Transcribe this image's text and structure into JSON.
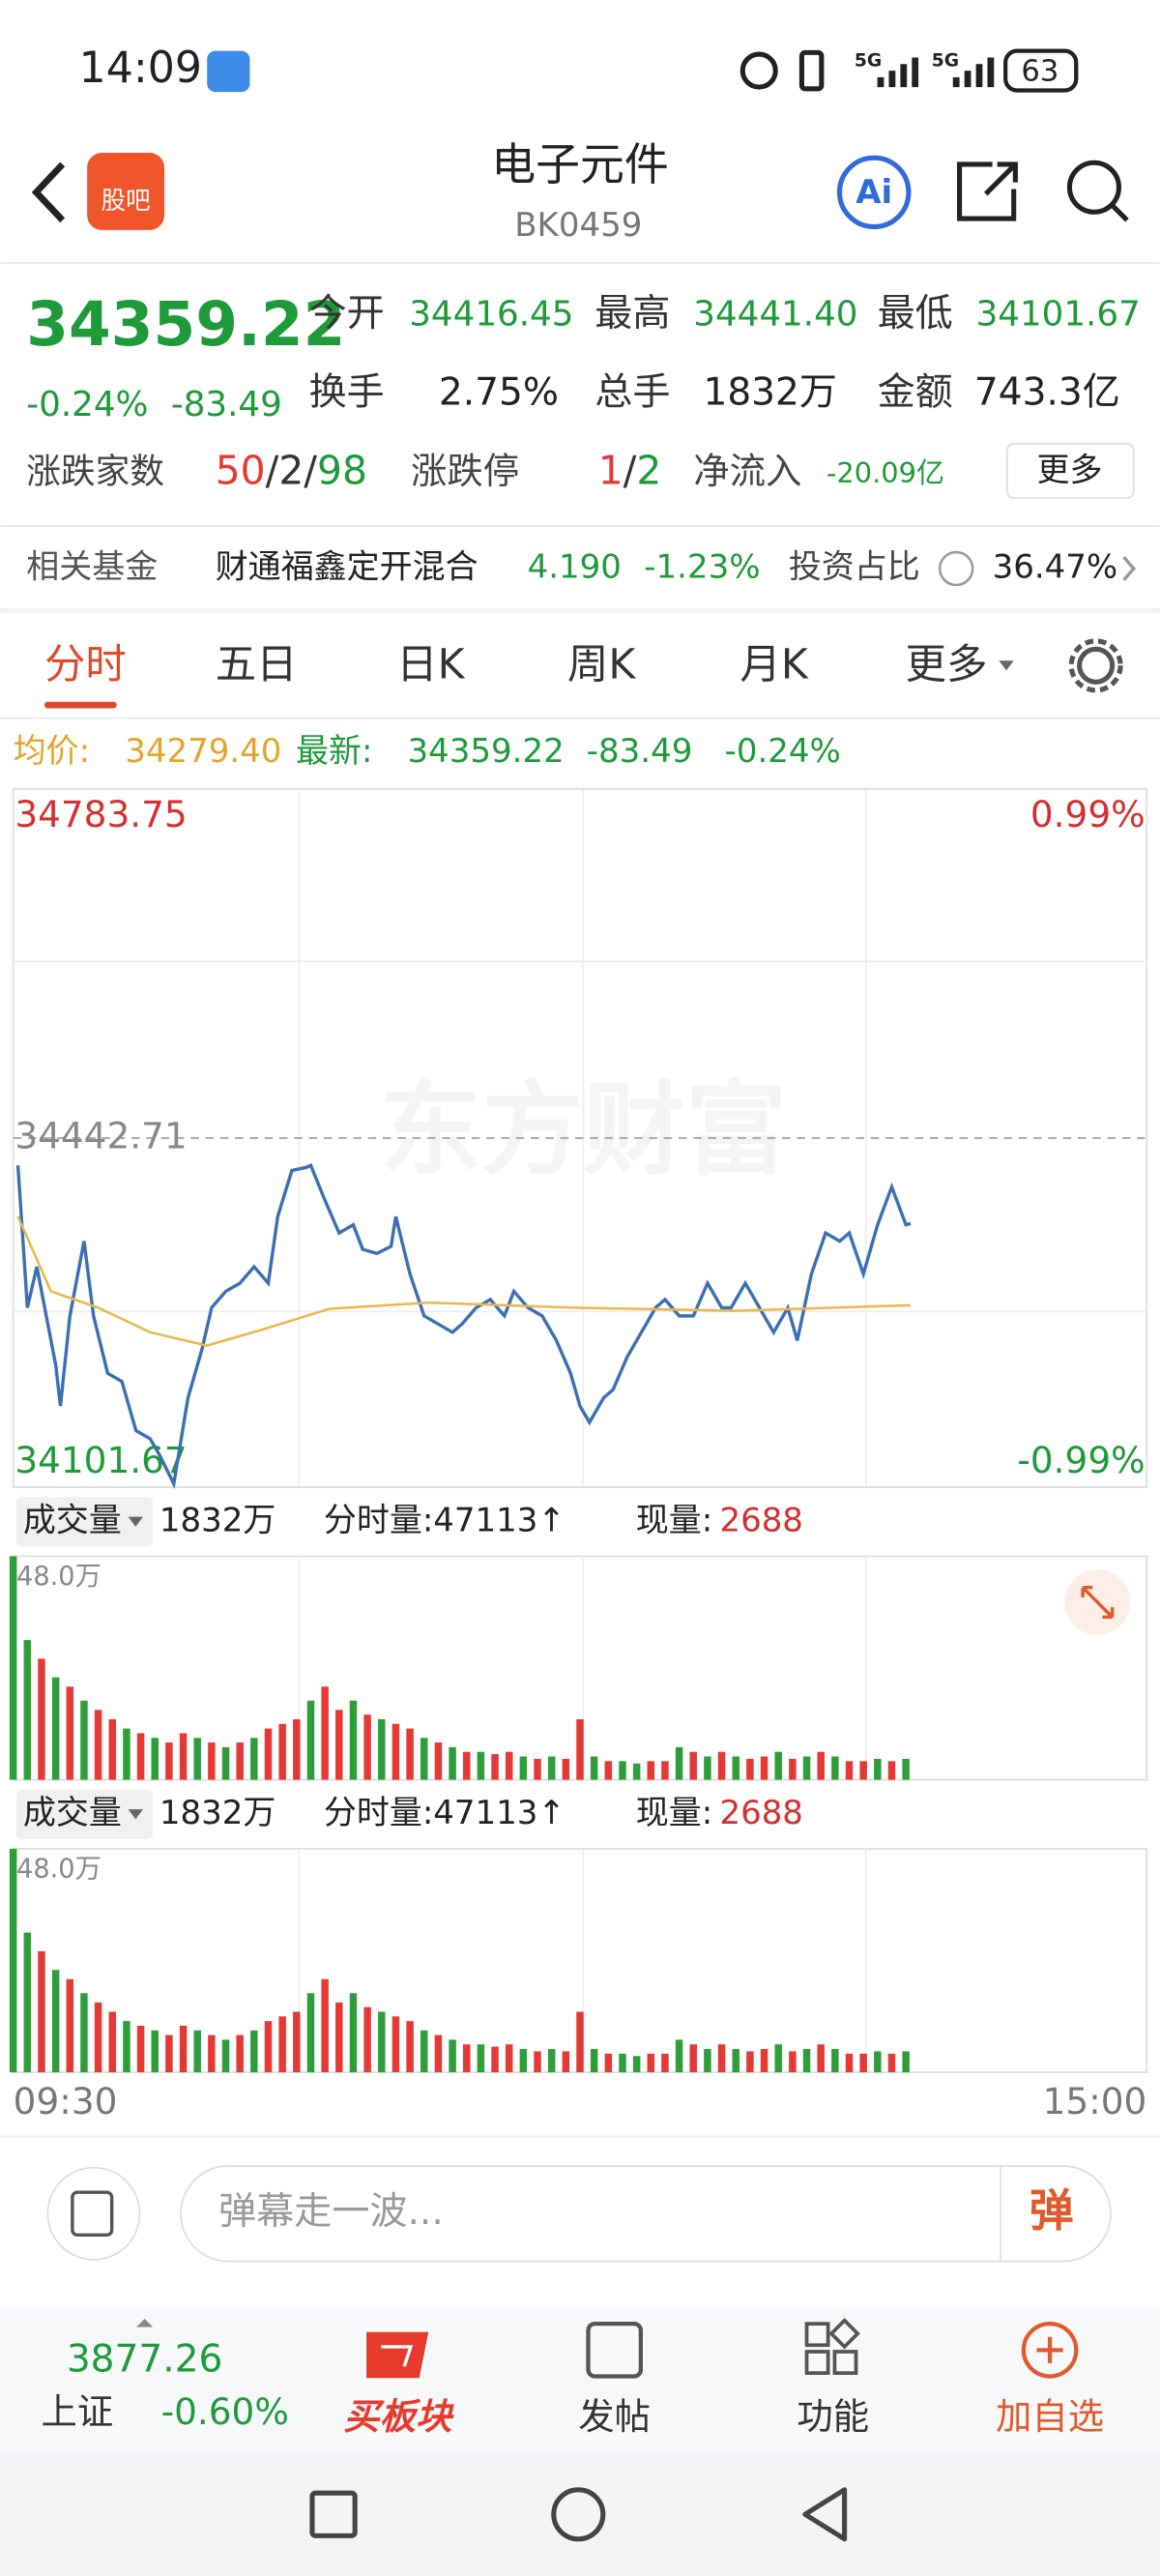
{
  "status_bar": {
    "time": "14:09",
    "network": [
      "5G",
      "5G"
    ],
    "battery": "63"
  },
  "header": {
    "logo": "股吧",
    "title": "电子元件",
    "code": "BK0459",
    "ai": "Ai"
  },
  "quote": {
    "price": "34359.22",
    "change_pct": "-0.24%",
    "change": "-83.49",
    "stats": [
      [
        "今开",
        "34416.45"
      ],
      [
        "最高",
        "34441.40"
      ],
      [
        "最低",
        "34101.67"
      ],
      [
        "换手",
        "2.75%"
      ],
      [
        "总手",
        "1832万"
      ],
      [
        "金额",
        "743.3亿"
      ]
    ],
    "breadth_label": "涨跌家数",
    "breadth": [
      "50",
      "/",
      "2",
      "/",
      "98"
    ],
    "limit_label": "涨跌停",
    "limit": [
      "1",
      "/",
      "2"
    ],
    "inflow_label": "净流入",
    "inflow": "-20.09亿",
    "more": "更多"
  },
  "fund": {
    "label": "相关基金",
    "name": "财通福鑫定开混合",
    "nav": "4.190",
    "change": "-1.23%",
    "ratio_label": "投资占比",
    "ratio": "36.47%"
  },
  "tabs": [
    "分时",
    "五日",
    "日K",
    "周K",
    "月K",
    "更多"
  ],
  "info": {
    "avg_label": "均价:",
    "avg": "34279.40",
    "last_label": "最新:",
    "last": "34359.22",
    "change": "-83.49",
    "change_pct": "-0.24%"
  },
  "watermark": "东方财富",
  "volume_panel": {
    "selector": "成交量",
    "total": "1832万",
    "period": "分时量:47113↑",
    "current_label": "现量:",
    "current": "2688"
  },
  "comment": {
    "placeholder": "弹幕走一波...",
    "button": "弹"
  },
  "bottom_nav": {
    "index_value": "3877.26",
    "index_name": "上证",
    "index_change": "-0.60%",
    "items": [
      "买板块",
      "发帖",
      "功能",
      "加自选"
    ]
  },
  "chart_data": [
    {
      "type": "line",
      "xlim": [
        0,
        240
      ],
      "xticks": [
        {
          "value": 0,
          "label": "09:30"
        },
        {
          "value": 240,
          "label": "15:00"
        }
      ],
      "ylim": [
        34101.67,
        34783.75
      ],
      "yticks": [
        34783.75,
        34442.71,
        34101.67
      ],
      "y2lim": [
        -0.99,
        0.99
      ],
      "y2ticks": [
        {
          "value": 0.99,
          "label": "0.99%"
        },
        {
          "value": -0.99,
          "label": "-0.99%"
        }
      ],
      "grid": true,
      "series": [
        {
          "color": "#3a6fb5",
          "x": [
            1,
            3,
            5,
            9,
            10,
            12,
            15,
            17,
            20,
            23,
            26,
            29,
            31,
            34,
            37,
            40,
            42,
            45,
            48,
            51,
            54,
            56,
            59,
            62,
            63,
            66,
            69,
            72,
            74,
            77,
            80,
            81,
            84,
            87,
            90,
            93,
            95,
            98,
            101,
            104,
            106,
            109,
            112,
            115,
            118,
            120,
            122,
            125,
            127,
            130,
            133,
            136,
            138,
            141,
            144,
            147,
            150,
            152,
            155,
            158,
            161,
            164,
            166,
            169,
            172,
            175,
            177,
            180,
            183,
            186,
            189,
            190
          ],
          "values": [
            34416,
            34277,
            34317,
            34221,
            34181,
            34269,
            34342,
            34269,
            34213,
            34205,
            34157,
            34149,
            34133,
            34105,
            34189,
            34237,
            34277,
            34293,
            34301,
            34317,
            34301,
            34366,
            34411,
            34414,
            34416,
            34382,
            34350,
            34358,
            34334,
            34330,
            34337,
            34366,
            34310,
            34269,
            34261,
            34253,
            34261,
            34277,
            34285,
            34269,
            34293,
            34277,
            34269,
            34245,
            34213,
            34181,
            34165,
            34189,
            34197,
            34229,
            34253,
            34277,
            34285,
            34269,
            34269,
            34301,
            34277,
            34277,
            34301,
            34277,
            34253,
            34277,
            34245,
            34310,
            34350,
            34342,
            34350,
            34310,
            34358,
            34395,
            34358,
            34359.22
          ]
        },
        {
          "color": "#e8b84a",
          "x": [
            1,
            8,
            18,
            29,
            41,
            53,
            67,
            88,
            119,
            153,
            190
          ],
          "values": [
            34366,
            34293,
            34277,
            34253,
            34240,
            34256,
            34276,
            34282,
            34277,
            34274,
            34279.4
          ]
        }
      ]
    },
    {
      "type": "bar",
      "xlim": [
        0,
        240
      ],
      "ylim": [
        0,
        48
      ],
      "yticks": [
        {
          "value": 48,
          "label": "48.0万"
        }
      ],
      "x": [
        0,
        3,
        6,
        9,
        12,
        15,
        18,
        21,
        24,
        27,
        30,
        33,
        36,
        39,
        42,
        45,
        48,
        51,
        54,
        57,
        60,
        63,
        66,
        69,
        72,
        75,
        78,
        81,
        84,
        87,
        90,
        93,
        96,
        99,
        102,
        105,
        108,
        111,
        114,
        117,
        120,
        123,
        126,
        129,
        132,
        135,
        138,
        141,
        144,
        147,
        150,
        153,
        156,
        159,
        162,
        165,
        168,
        171,
        174,
        177,
        180,
        183,
        186,
        189
      ],
      "values": [
        48,
        30,
        26,
        22,
        20,
        17,
        15,
        13,
        11,
        10,
        9,
        8,
        10,
        9,
        8,
        7,
        8,
        9,
        11,
        12,
        13,
        17,
        20,
        15,
        17,
        14,
        13,
        12,
        11,
        9,
        8,
        7,
        6,
        6,
        5.5,
        6,
        5,
        4.5,
        5,
        4.5,
        13,
        5,
        4,
        4,
        3.5,
        4,
        4,
        7,
        6,
        5,
        6,
        5,
        4.5,
        5,
        6,
        4.5,
        5,
        6,
        5,
        4,
        4,
        4.5,
        4,
        4.5
      ],
      "colors": [
        "#2e9e3a",
        "#2e9e3a",
        "#e53935",
        "#2e9e3a",
        "#e53935",
        "#2e9e3a",
        "#e53935",
        "#e53935",
        "#2e9e3a",
        "#e53935",
        "#2e9e3a",
        "#e53935",
        "#e53935",
        "#2e9e3a",
        "#e53935",
        "#2e9e3a",
        "#e53935",
        "#2e9e3a",
        "#e53935",
        "#e53935",
        "#e53935",
        "#2e9e3a",
        "#e53935",
        "#e53935",
        "#2e9e3a",
        "#e53935",
        "#2e9e3a",
        "#e53935",
        "#e53935",
        "#2e9e3a",
        "#e53935",
        "#2e9e3a",
        "#e53935",
        "#2e9e3a",
        "#e53935",
        "#e53935",
        "#2e9e3a",
        "#e53935",
        "#2e9e3a",
        "#e53935",
        "#e53935",
        "#2e9e3a",
        "#e53935",
        "#2e9e3a",
        "#2e9e3a",
        "#e53935",
        "#e53935",
        "#2e9e3a",
        "#e53935",
        "#2e9e3a",
        "#e53935",
        "#2e9e3a",
        "#e53935",
        "#e53935",
        "#2e9e3a",
        "#e53935",
        "#2e9e3a",
        "#e53935",
        "#2e9e3a",
        "#e53935",
        "#e53935",
        "#2e9e3a",
        "#e53935",
        "#2e9e3a"
      ]
    }
  ]
}
